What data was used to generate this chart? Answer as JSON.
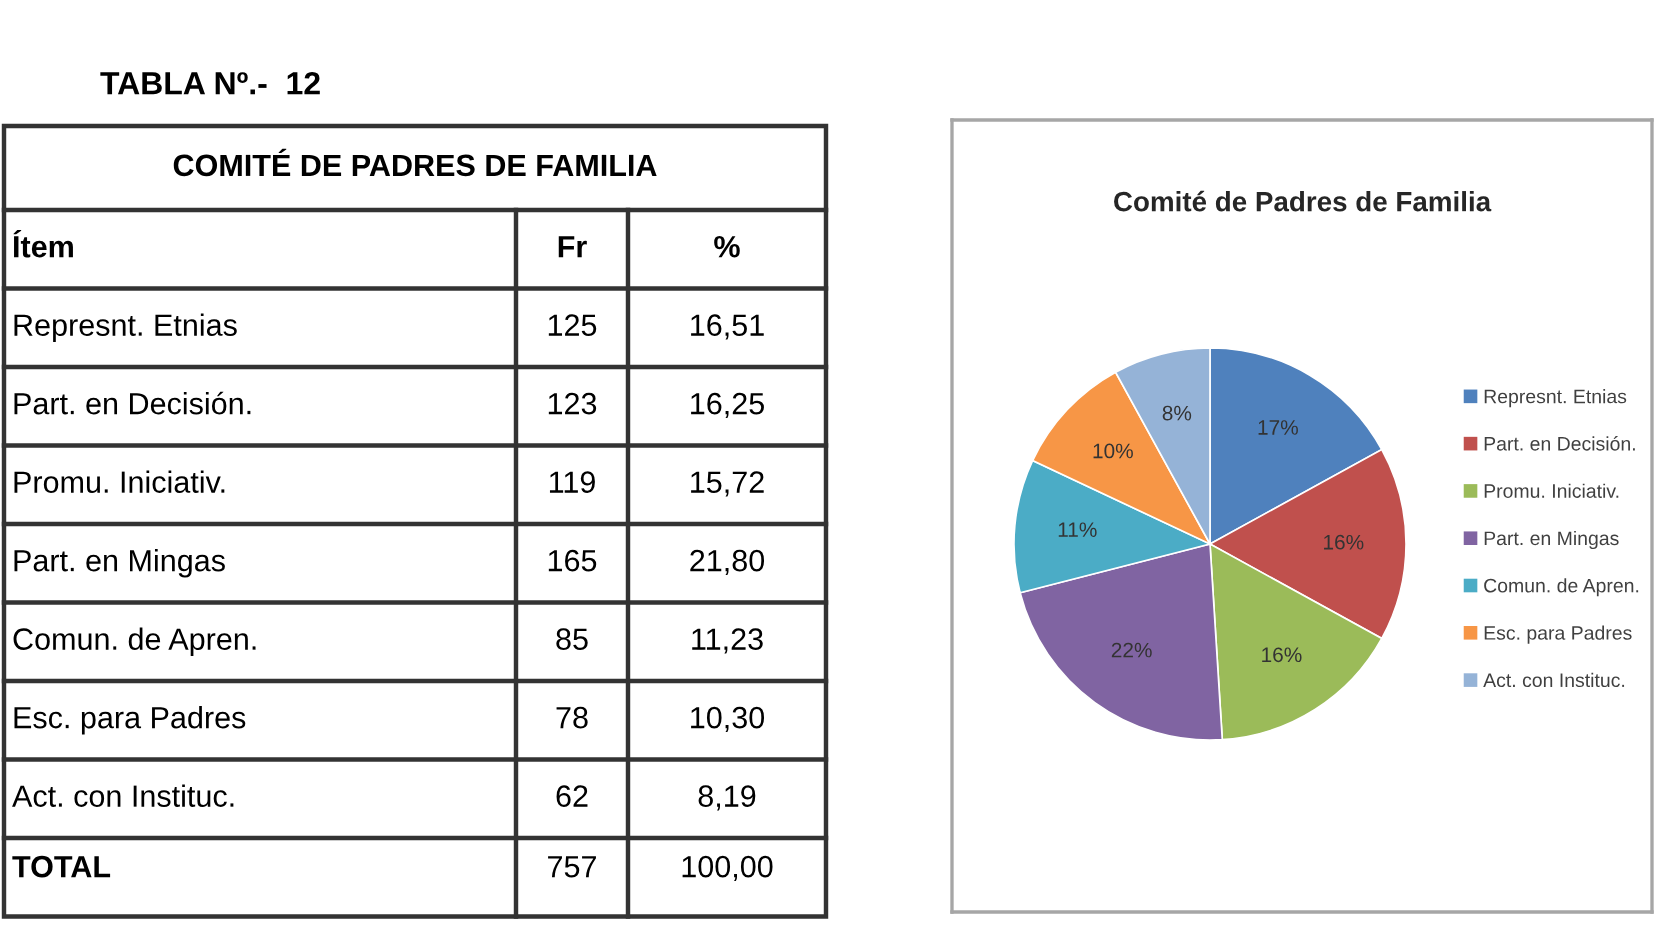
{
  "chart_data": [
    {
      "type": "other",
      "title": "TABLA Nº.-  12",
      "subtitle": "COMITÉ DE PADRES DE FAMILIA",
      "xlabel": "Ítem",
      "categories": [
        "Represnt. Etnias",
        "Part. en Decisión.",
        "Promu. Iniciativ.",
        "Part. en Mingas",
        "Comun. de Apren.",
        "Esc. para Padres",
        "Act. con Instituc.",
        "TOTAL"
      ],
      "data_labels": true,
      "series": [
        {
          "name": "Fr",
          "values": [
            125,
            123,
            119,
            165,
            85,
            78,
            62,
            757
          ]
        },
        {
          "name": "%",
          "values": [
            16.51,
            16.25,
            15.72,
            21.8,
            11.23,
            10.3,
            8.19,
            100.0
          ],
          "value_labels": [
            "16,51",
            "16,25",
            "15,72",
            "21,80",
            "11,23",
            "10,30",
            "8,19",
            "100,00"
          ]
        }
      ]
    },
    {
      "type": "pie",
      "title": "Comité de Padres de Familia",
      "categories": [
        "Represnt. Etnias",
        "Part. en Decisión.",
        "Promu. Iniciativ.",
        "Part. en Mingas",
        "Comun. de Apren.",
        "Esc. para Padres",
        "Act. con Instituc."
      ],
      "values": [
        17,
        16,
        16,
        22,
        11,
        10,
        8
      ],
      "colors": [
        "#4f81bd",
        "#c0504d",
        "#9bbb59",
        "#8064a2",
        "#4bacc6",
        "#f79646",
        "#95b3d7"
      ],
      "value_labels": [
        "17%",
        "16%",
        "16%",
        "22%",
        "11%",
        "10%",
        "8%"
      ],
      "legend": "right"
    }
  ]
}
